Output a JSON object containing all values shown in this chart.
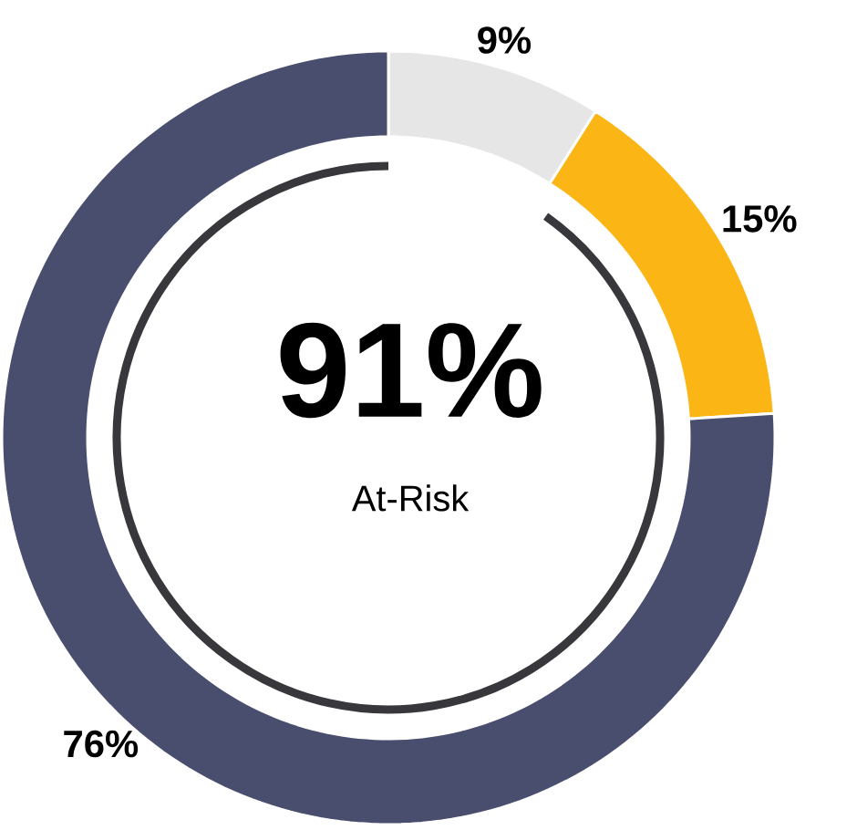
{
  "chart_data": {
    "type": "donut",
    "title": "91%",
    "subtitle": "At-Risk",
    "categories": [
      null,
      null,
      null
    ],
    "values": [
      9,
      15,
      76
    ],
    "colors": [
      "#e6e6e6",
      "#fbb515",
      "#4a4e6e"
    ],
    "data_labels": true,
    "value_labels": [
      "9%",
      "15%",
      "76%"
    ]
  }
}
